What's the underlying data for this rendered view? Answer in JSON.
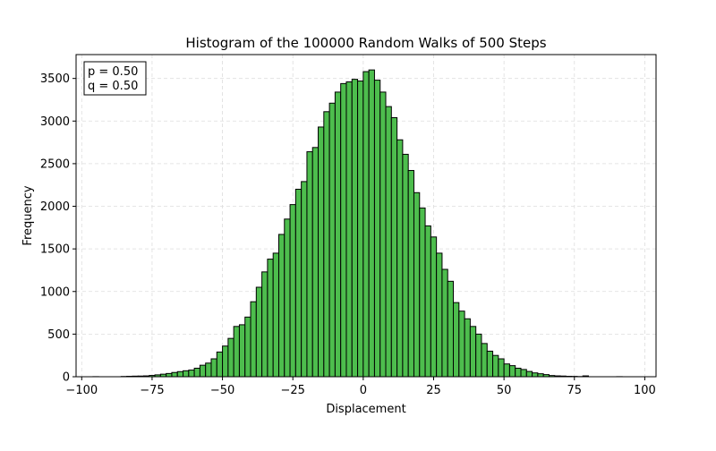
{
  "chart_data": {
    "type": "bar",
    "title": "Histogram of the 100000 Random Walks of 500 Steps",
    "xlabel": "Displacement",
    "ylabel": "Frequency",
    "xlim": [
      -102,
      104
    ],
    "ylim": [
      0,
      3780
    ],
    "xticks": [
      -100,
      -75,
      -50,
      -25,
      0,
      25,
      50,
      75,
      100
    ],
    "yticks": [
      0,
      500,
      1000,
      1500,
      2000,
      2500,
      3000,
      3500
    ],
    "grid": true,
    "bar_color": "#4dbd4d",
    "edge_color": "#000000",
    "annotation": [
      "p = 0.50",
      "q = 0.50"
    ],
    "annotation_placement": "top-left",
    "bin_width": 2,
    "bin_start": -96,
    "counts": [
      1,
      0,
      0,
      0,
      0,
      3,
      5,
      7,
      8,
      10,
      15,
      22,
      30,
      38,
      50,
      60,
      70,
      78,
      100,
      135,
      160,
      210,
      290,
      360,
      450,
      590,
      610,
      700,
      880,
      1050,
      1230,
      1380,
      1450,
      1670,
      1850,
      2020,
      2200,
      2290,
      2640,
      2690,
      2930,
      3110,
      3210,
      3340,
      3440,
      3460,
      3490,
      3470,
      3580,
      3600,
      3480,
      3340,
      3170,
      3040,
      2780,
      2610,
      2420,
      2160,
      1980,
      1770,
      1640,
      1450,
      1260,
      1120,
      870,
      770,
      680,
      590,
      500,
      390,
      300,
      250,
      210,
      150,
      130,
      100,
      85,
      62,
      45,
      35,
      25,
      14,
      10,
      8,
      5,
      4,
      2,
      10,
      0,
      0,
      0,
      0,
      0,
      1,
      0,
      0
    ]
  }
}
